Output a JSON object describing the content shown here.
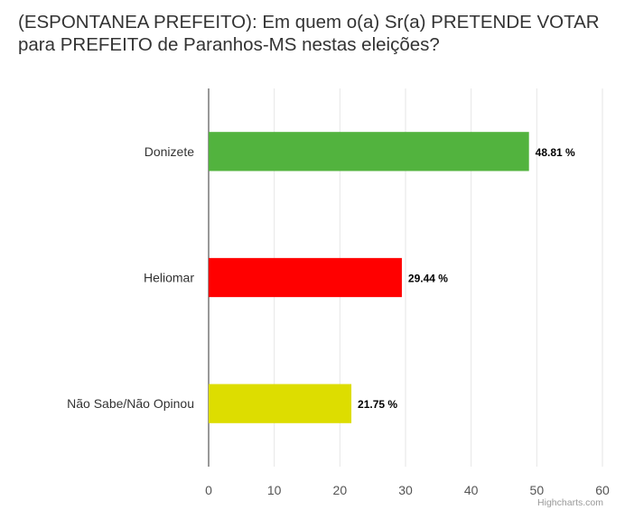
{
  "chart_data": {
    "type": "bar",
    "orientation": "horizontal",
    "title": "(ESPONTANEA PREFEITO): Em quem o(a) Sr(a) PRETENDE VOTAR para PREFEITO de Paranhos-MS nestas eleições?",
    "categories": [
      "Donizete",
      "Heliomar",
      "Não Sabe/Não Opinou"
    ],
    "values": [
      48.81,
      29.44,
      21.75
    ],
    "data_labels": [
      "48.81 %",
      "29.44 %",
      "21.75 %"
    ],
    "colors": [
      "#52b33e",
      "#ff0000",
      "#dddd00"
    ],
    "xlim": [
      0,
      60
    ],
    "xticks": [
      0,
      10,
      20,
      30,
      40,
      50,
      60
    ],
    "xlabel": "",
    "ylabel": "",
    "grid": true,
    "legend": "none"
  },
  "credit": "Highcharts.com"
}
